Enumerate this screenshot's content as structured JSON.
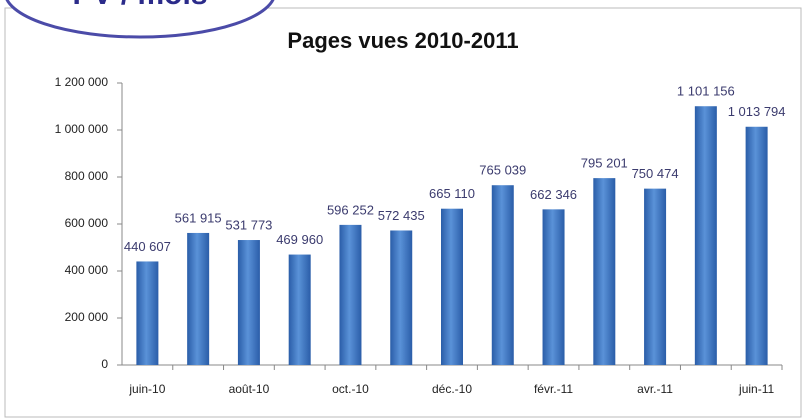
{
  "chart_data": {
    "type": "bar",
    "title": "Pages vues 2010-2011",
    "annotation": "PV / mois",
    "categories": [
      "juin-10",
      null,
      "août-10",
      null,
      "oct.-10",
      null,
      "déc.-10",
      null,
      "févr.-11",
      null,
      "avr.-11",
      null,
      "juin-11"
    ],
    "values": [
      440607,
      561915,
      531773,
      469960,
      596252,
      572435,
      665110,
      765039,
      662346,
      795201,
      750474,
      1101156,
      1013794
    ],
    "value_labels": [
      "440 607",
      "561 915",
      "531 773",
      "469 960",
      "596 252",
      "572 435",
      "665 110",
      "765 039",
      "662 346",
      "795 201",
      "750 474",
      "1 101 156",
      "1 013 794"
    ],
    "color": "#3a75c4",
    "ylim": [
      0,
      1200000
    ],
    "yticks": [
      0,
      {
        "value": 200000,
        "label": "200 000"
      },
      {
        "value": 400000,
        "label": "400 000"
      },
      {
        "value": 600000,
        "label": "600 000"
      },
      {
        "value": 800000,
        "label": "800 000"
      },
      {
        "value": 1000000,
        "label": "1 000 000"
      },
      {
        "value": 1200000,
        "label": "1 200 000"
      }
    ],
    "grid": false
  }
}
